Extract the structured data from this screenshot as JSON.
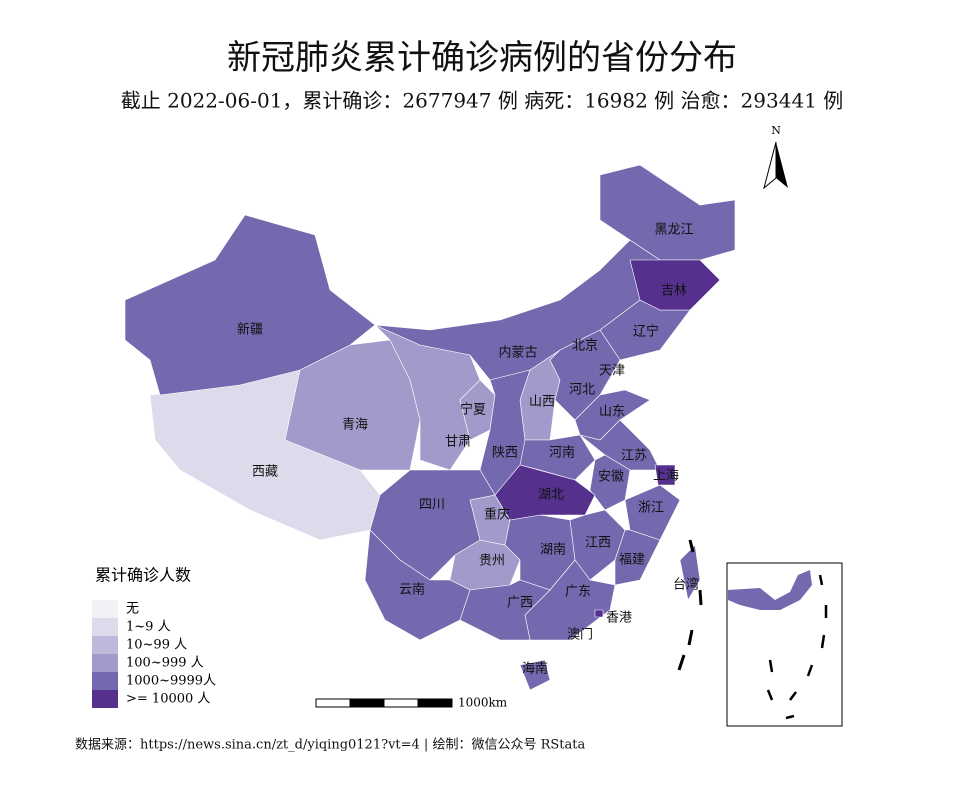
{
  "title": "新冠肺炎累计确诊病例的省份分布",
  "subtitle": "截止 2022-06-01，累计确诊：2677947 例  病死：16982 例  治愈：293441 例",
  "map": {
    "north_label": "N",
    "scale_label": "1000km",
    "legend": {
      "title": "累计确诊人数",
      "items": [
        {
          "label": "无",
          "color": "#f2f1f6",
          "provinces": []
        },
        {
          "label": "1~9 人",
          "color": "#dddbeb",
          "provinces": [
            "西藏"
          ]
        },
        {
          "label": "10~99 人",
          "color": "#bdb9da",
          "provinces": [
            "澳门"
          ]
        },
        {
          "label": "100~999 人",
          "color": "#a09bca",
          "provinces": [
            "青海",
            "甘肃",
            "宁夏",
            "山西",
            "贵州",
            "重庆"
          ]
        },
        {
          "label": "1000~9999人",
          "color": "#7469ae",
          "provinces": [
            "新疆",
            "内蒙古",
            "黑龙江",
            "辽宁",
            "北京",
            "天津",
            "河北",
            "山东",
            "陕西",
            "河南",
            "江苏",
            "安徽",
            "浙江",
            "四川",
            "云南",
            "湖南",
            "江西",
            "福建",
            "广东",
            "广西",
            "海南",
            "台湾"
          ]
        },
        {
          "label": ">= 10000 人",
          "color": "#55308d",
          "provinces": [
            "吉林",
            "湖北",
            "上海",
            "香港"
          ]
        }
      ]
    }
  },
  "source": "数据来源：https://news.sina.cn/zt_d/yiqing0121?vt=4 | 绘制：微信公众号 RStata"
}
